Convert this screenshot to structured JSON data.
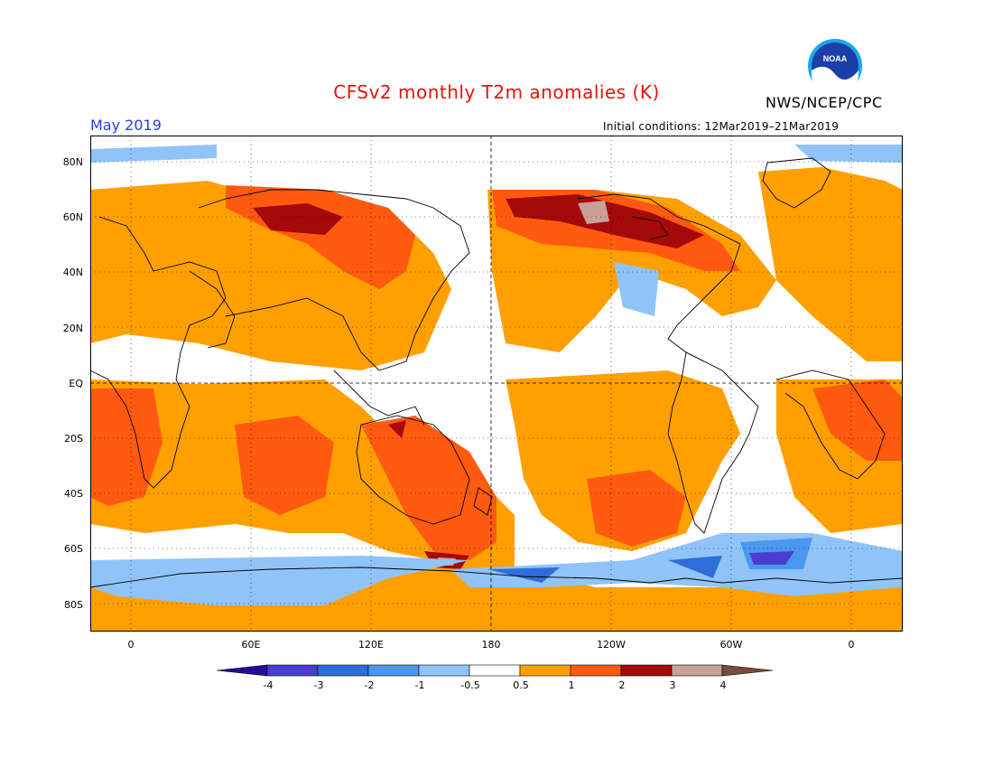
{
  "header": {
    "title": "CFSv2 monthly T2m anomalies (K)",
    "agency": "NWS/NCEP/CPC",
    "month": "May 2019",
    "initial_conditions": "Initial conditions: 12Mar2019–21Mar2019",
    "logo_text": "NOAA"
  },
  "map": {
    "lat_labels": [
      "80N",
      "60N",
      "40N",
      "20N",
      "EQ",
      "20S",
      "40S",
      "60S",
      "80S"
    ],
    "lon_labels": [
      "0",
      "60E",
      "120E",
      "180",
      "120W",
      "60W",
      "0"
    ]
  },
  "colorbar": {
    "labels": [
      "-4",
      "-3",
      "-2",
      "-1",
      "-0.5",
      "0.5",
      "1",
      "2",
      "3",
      "4"
    ],
    "colors": [
      "#2a0a96",
      "#4a3ed0",
      "#2e6ed8",
      "#4a98f0",
      "#90c4f8",
      "#ffffff",
      "#ffa000",
      "#ff5a10",
      "#a50a0a",
      "#c8a096",
      "#7a4a3a"
    ]
  },
  "palette": {
    "warm1": "#ffa000",
    "warm2": "#ff5a10",
    "warm3": "#a50a0a",
    "warm4": "#c8a096",
    "cool1": "#90c4f8",
    "cool2": "#4a98f0",
    "cool3": "#2e6ed8",
    "cool4": "#4a3ed0"
  }
}
